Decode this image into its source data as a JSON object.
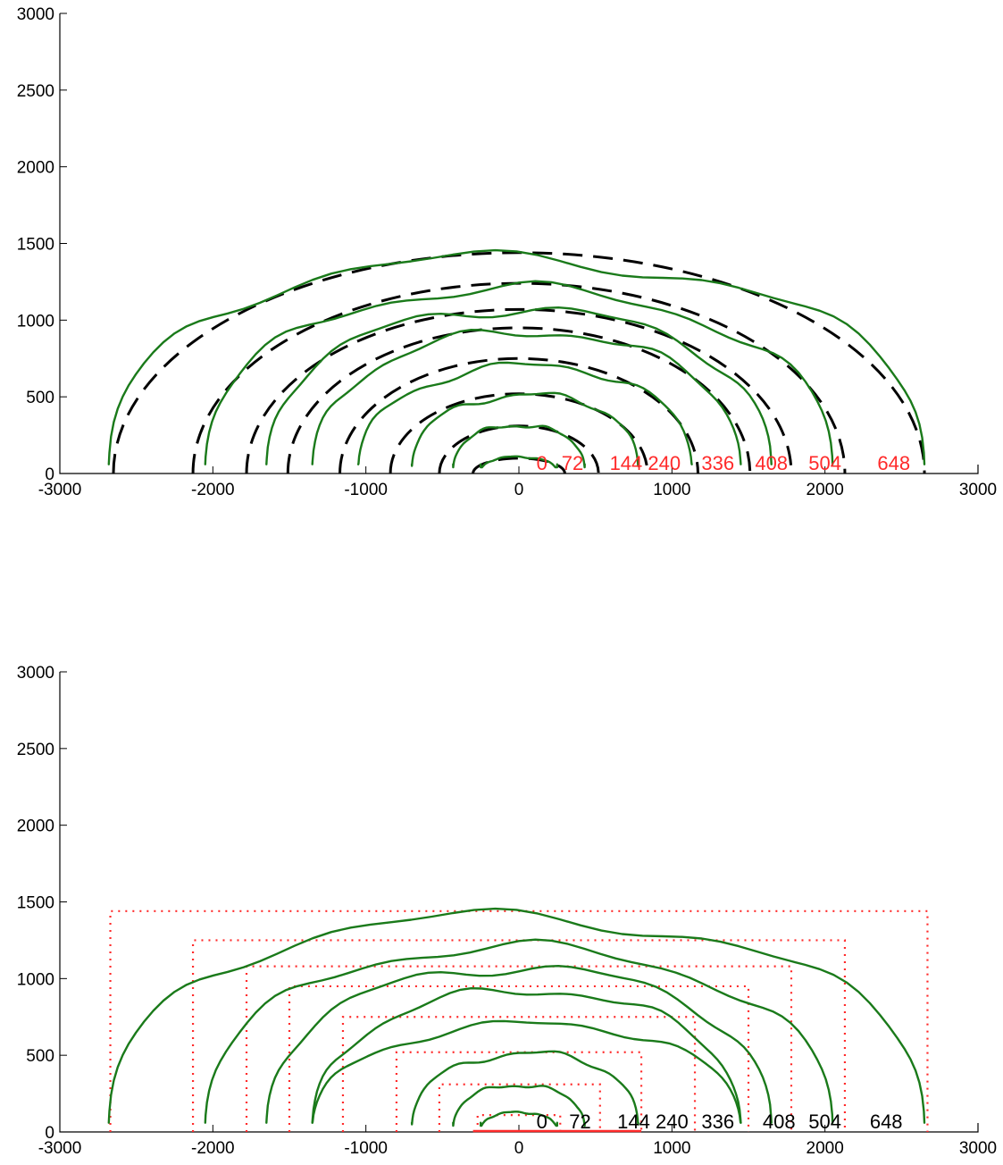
{
  "chart_data": [
    {
      "type": "line",
      "xlim": [
        -3000,
        3000
      ],
      "ylim": [
        0,
        3000
      ],
      "xticks": [
        -3000,
        -2000,
        -1000,
        0,
        1000,
        2000,
        3000
      ],
      "yticks": [
        0,
        500,
        1000,
        1500,
        2000,
        2500,
        3000
      ],
      "fit_shape": "ellipse",
      "annotation_color": "#ff2a2a",
      "annotations": [
        "0",
        "72",
        "144",
        "240",
        "336",
        "408",
        "504",
        "648"
      ],
      "annotation_x": [
        150,
        350,
        700,
        950,
        1300,
        1650,
        2000,
        2450
      ],
      "series": [
        {
          "label": "0",
          "left": -250,
          "right": 250,
          "height": 110
        },
        {
          "label": "72",
          "left": -430,
          "right": 430,
          "height": 320
        },
        {
          "label": "144",
          "left": -700,
          "right": 780,
          "height": 520
        },
        {
          "label": "240",
          "left": -1050,
          "right": 1130,
          "height": 700
        },
        {
          "label": "336",
          "left": -1350,
          "right": 1450,
          "height": 910
        },
        {
          "label": "408",
          "left": -1650,
          "right": 1650,
          "height": 1060
        },
        {
          "label": "504",
          "left": -2050,
          "right": 2050,
          "height": 1200
        },
        {
          "label": "648",
          "left": -2680,
          "right": 2650,
          "height": 1420
        }
      ],
      "fits": [
        {
          "cx": 0,
          "rx": 300,
          "ry": 100
        },
        {
          "cx": 0,
          "rx": 520,
          "ry": 310
        },
        {
          "cx": 0,
          "rx": 840,
          "ry": 520
        },
        {
          "cx": 0,
          "rx": 1170,
          "ry": 750
        },
        {
          "cx": 0,
          "rx": 1510,
          "ry": 950
        },
        {
          "cx": 0,
          "rx": 1780,
          "ry": 1070
        },
        {
          "cx": 0,
          "rx": 2130,
          "ry": 1240
        },
        {
          "cx": 0,
          "rx": 2650,
          "ry": 1440
        }
      ]
    },
    {
      "type": "line",
      "xlim": [
        -3000,
        3000
      ],
      "ylim": [
        0,
        3000
      ],
      "xticks": [
        -3000,
        -2000,
        -1000,
        0,
        1000,
        2000,
        3000
      ],
      "yticks": [
        0,
        500,
        1000,
        1500,
        2000,
        2500,
        3000
      ],
      "fit_shape": "rectangle",
      "annotation_color": "#000000",
      "annotations": [
        "0",
        "72",
        "144",
        "240",
        "336",
        "408",
        "504",
        "648"
      ],
      "annotation_x": [
        150,
        400,
        750,
        1000,
        1300,
        1700,
        2000,
        2400
      ],
      "series": [
        {
          "label": "0",
          "left": -250,
          "right": 250,
          "height": 130
        },
        {
          "label": "72",
          "left": -430,
          "right": 430,
          "height": 310
        },
        {
          "label": "144",
          "left": -700,
          "right": 780,
          "height": 520
        },
        {
          "label": "240",
          "left": -1350,
          "right": 1450,
          "height": 700
        },
        {
          "label": "336",
          "left": -1350,
          "right": 1450,
          "height": 910
        },
        {
          "label": "408",
          "left": -1650,
          "right": 1650,
          "height": 1060
        },
        {
          "label": "504",
          "left": -2050,
          "right": 2050,
          "height": 1200
        },
        {
          "label": "648",
          "left": -2680,
          "right": 2650,
          "height": 1420
        }
      ],
      "fits": [
        {
          "x0": -270,
          "x1": 270,
          "h": 110
        },
        {
          "x0": -520,
          "x1": 530,
          "h": 310
        },
        {
          "x0": -800,
          "x1": 800,
          "h": 520
        },
        {
          "x0": -1150,
          "x1": 1150,
          "h": 750
        },
        {
          "x0": -1500,
          "x1": 1500,
          "h": 950
        },
        {
          "x0": -1780,
          "x1": 1780,
          "h": 1080
        },
        {
          "x0": -2130,
          "x1": 2130,
          "h": 1250
        },
        {
          "x0": -2670,
          "x1": 2670,
          "h": 1440
        }
      ]
    }
  ]
}
